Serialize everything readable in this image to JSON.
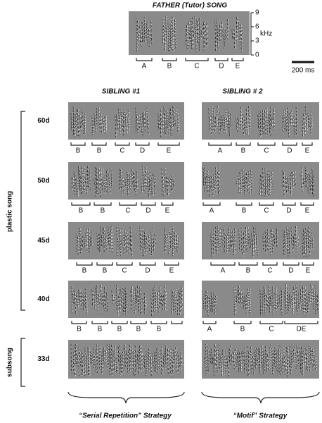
{
  "father": {
    "title": "FATHER (Tutor) SONG",
    "freq_lim": [
      0,
      9
    ],
    "freq_ticks": [
      9,
      6,
      3,
      0
    ],
    "freq_unit": "kHz",
    "syllables": [
      "A",
      "B",
      "C",
      "D",
      "E"
    ],
    "scale_bar": "200 ms"
  },
  "highlight": "B",
  "highlight_color": "#e0302c",
  "columns": [
    "SIBLING #1",
    "SIBLING # 2"
  ],
  "rows": [
    {
      "age": "60d",
      "sibling1": [
        "B",
        "B",
        "C",
        "D",
        "E"
      ],
      "sibling2": [
        "A",
        "B",
        "C",
        "D",
        "E"
      ]
    },
    {
      "age": "50d",
      "sibling1": [
        "B",
        "B",
        "C",
        "D",
        "E"
      ],
      "sibling2": [
        "A",
        "B",
        "C",
        "D",
        "E"
      ]
    },
    {
      "age": "45d",
      "sibling1": [
        "B",
        "B",
        "C",
        "D",
        "E"
      ],
      "sibling2": [
        "A",
        "B",
        "C",
        "D",
        "E"
      ]
    },
    {
      "age": "40d",
      "sibling1": [
        "B",
        "B",
        "B",
        "B",
        "B"
      ],
      "sibling2": [
        "A",
        "B",
        "C",
        "DE"
      ]
    },
    {
      "age": "33d",
      "sibling1": [],
      "sibling2": []
    }
  ],
  "groups": [
    "plastic song",
    "subsong"
  ],
  "strategies": [
    "“Serial Repetition” Strategy",
    "“Motif” Strategy"
  ]
}
